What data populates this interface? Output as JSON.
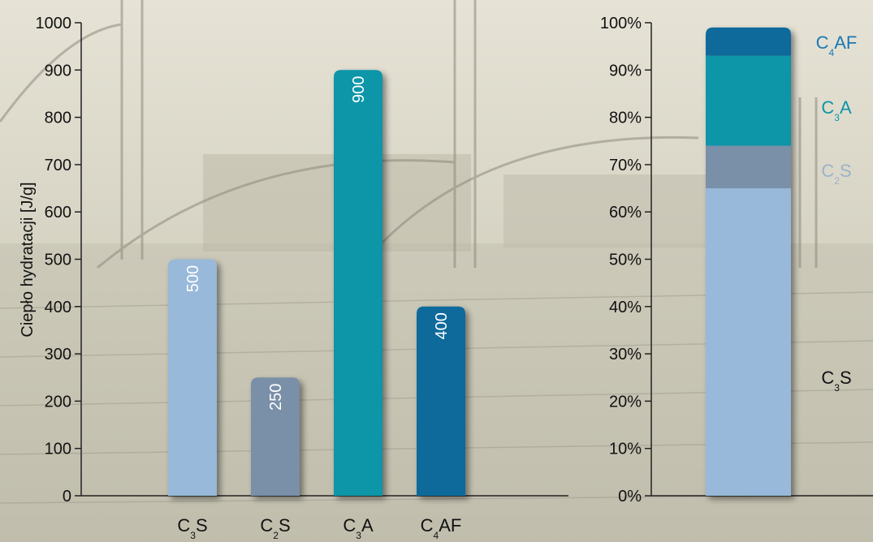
{
  "colors": {
    "background": "#d9d6c6",
    "axis": "#222222",
    "C3S": "#98b9d9",
    "C2S": "#7a8fa8",
    "C3A": "#0d95a8",
    "C4AF": "#0e6a9b",
    "label_C4AF": "#1b78b4",
    "label_C3A": "#0d95a8",
    "label_C2S": "#9ab3c8",
    "label_C3S": "#111111"
  },
  "chart_data": [
    {
      "type": "bar",
      "ylabel": "Ciepło hydratacji [J/g]",
      "ylim": [
        0,
        1000
      ],
      "yticks": [
        "0",
        "100",
        "200",
        "300",
        "400",
        "500",
        "600",
        "700",
        "800",
        "900",
        "1000"
      ],
      "categories": [
        {
          "base": "C",
          "sub": "3",
          "rest": "S"
        },
        {
          "base": "C",
          "sub": "2",
          "rest": "S"
        },
        {
          "base": "C",
          "sub": "3",
          "rest": "A"
        },
        {
          "base": "C",
          "sub": "4",
          "rest": "AF"
        }
      ],
      "values": [
        500,
        250,
        900,
        400
      ],
      "value_labels": [
        "500",
        "250",
        "900",
        "400"
      ],
      "grid": false
    },
    {
      "type": "bar",
      "stacked": true,
      "ylim": [
        0,
        100
      ],
      "yticks": [
        "0%",
        "10%",
        "20%",
        "30%",
        "40%",
        "50%",
        "60%",
        "70%",
        "80%",
        "90%",
        "100%"
      ],
      "segments": [
        {
          "base": "C",
          "sub": "3",
          "rest": "S",
          "value": 65
        },
        {
          "base": "C",
          "sub": "2",
          "rest": "S",
          "value": 9
        },
        {
          "base": "C",
          "sub": "3",
          "rest": "A",
          "value": 19
        },
        {
          "base": "C",
          "sub": "4",
          "rest": "AF",
          "value": 7
        }
      ],
      "grid": false
    }
  ]
}
